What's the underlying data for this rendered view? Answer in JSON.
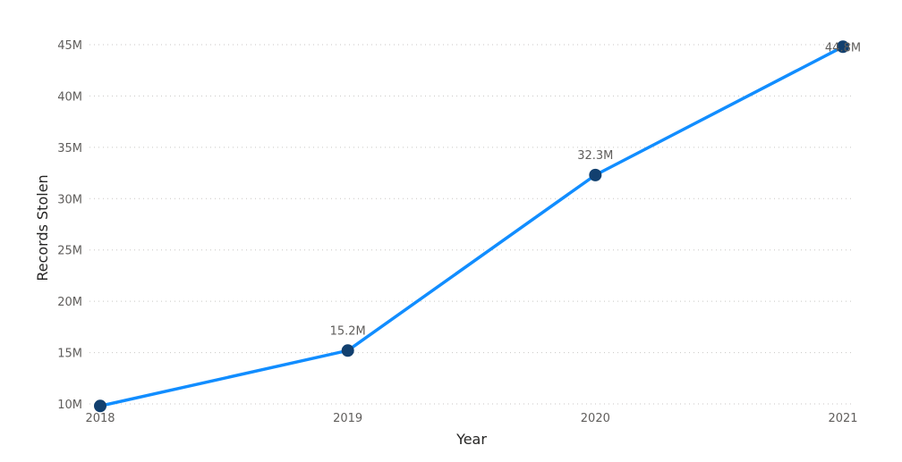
{
  "chart_data": {
    "type": "line",
    "title": "",
    "xlabel": "Year",
    "ylabel": "Records Stolen",
    "categories": [
      "2018",
      "2019",
      "2020",
      "2021"
    ],
    "ylim": [
      10,
      45
    ],
    "yticks": [
      10,
      15,
      20,
      25,
      30,
      35,
      40,
      45
    ],
    "ytick_labels": [
      "10M",
      "15M",
      "20M",
      "25M",
      "30M",
      "35M",
      "40M",
      "45M"
    ],
    "grid": true,
    "series": [
      {
        "values": [
          9.8,
          15.2,
          32.3,
          44.8
        ],
        "data_labels": [
          "",
          "15.2M",
          "32.3M",
          "44.8M"
        ],
        "color": "#118dff",
        "marker_color": "#12406f"
      }
    ]
  }
}
